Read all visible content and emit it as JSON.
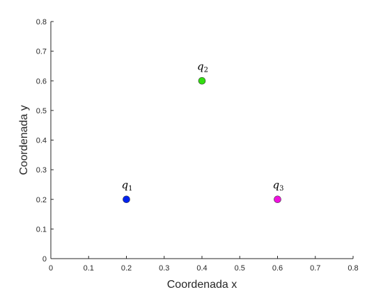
{
  "chart_data": {
    "type": "scatter",
    "xlabel": "Coordenada x",
    "ylabel": "Coordenada y",
    "xlim": [
      0,
      0.8
    ],
    "ylim": [
      0,
      0.8
    ],
    "xticks": [
      "0",
      "0.1",
      "0.2",
      "0.3",
      "0.4",
      "0.5",
      "0.6",
      "0.7",
      "0.8"
    ],
    "yticks": [
      "0",
      "0.1",
      "0.2",
      "0.3",
      "0.4",
      "0.5",
      "0.6",
      "0.7",
      "0.8"
    ],
    "grid": false,
    "points": [
      {
        "label_base": "q",
        "label_sub": "1",
        "x": 0.2,
        "y": 0.2,
        "color": "#0022ee"
      },
      {
        "label_base": "q",
        "label_sub": "2",
        "x": 0.4,
        "y": 0.6,
        "color": "#33dd11"
      },
      {
        "label_base": "q",
        "label_sub": "3",
        "x": 0.6,
        "y": 0.2,
        "color": "#ee11dd"
      }
    ]
  }
}
